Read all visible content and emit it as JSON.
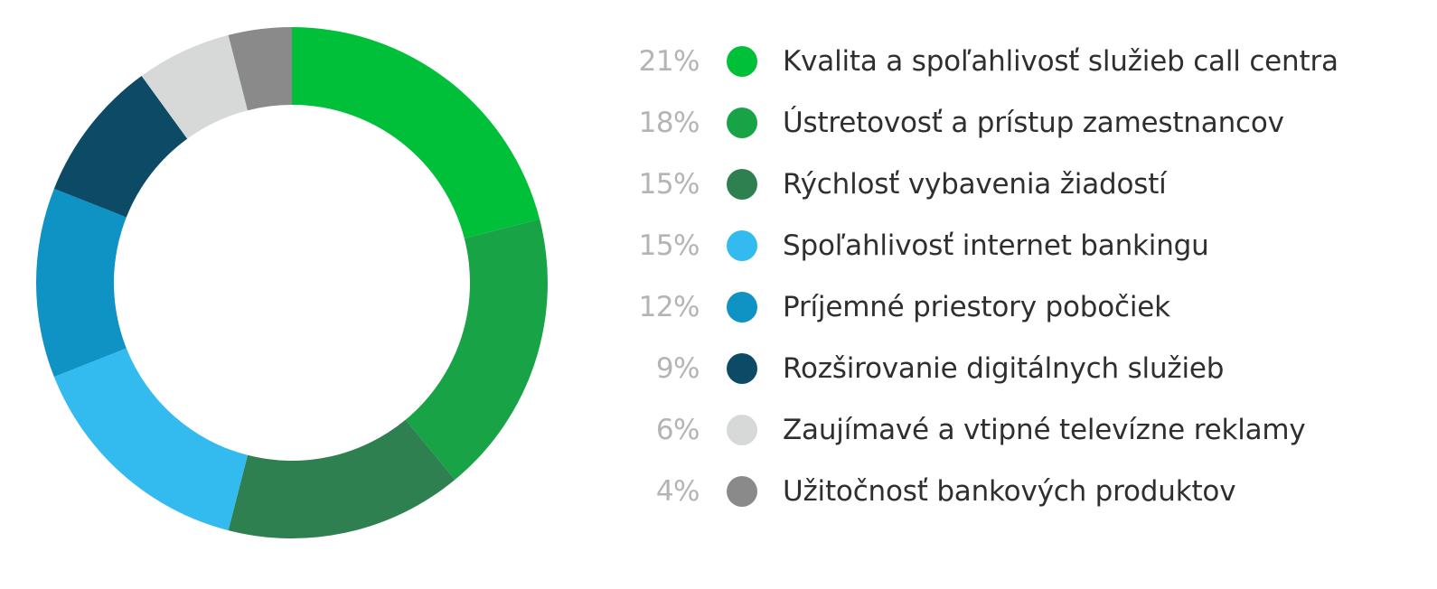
{
  "chart_data": {
    "type": "pie",
    "donut": true,
    "legend_position": "right",
    "slices": [
      {
        "label": "Kvalita a spoľahlivosť služieb call centra",
        "value": 21,
        "value_label": "21%",
        "color": "#00c03a"
      },
      {
        "label": "Ústretovosť a prístup zamestnancov",
        "value": 18,
        "value_label": "18%",
        "color": "#19a347"
      },
      {
        "label": "Rýchlosť vybavenia žiadostí",
        "value": 15,
        "value_label": "15%",
        "color": "#2e8050"
      },
      {
        "label": "Spoľahlivosť internet bankingu",
        "value": 15,
        "value_label": "15%",
        "color": "#33bbf0"
      },
      {
        "label": "Príjemné priestory pobočiek",
        "value": 12,
        "value_label": "12%",
        "color": "#0f92c4"
      },
      {
        "label": "Rozširovanie digitálnych služieb",
        "value": 9,
        "value_label": "9%",
        "color": "#0c4a66"
      },
      {
        "label": "Zaujímavé a vtipné televízne reklamy",
        "value": 6,
        "value_label": "6%",
        "color": "#d7d8d8"
      },
      {
        "label": "Užitočnosť bankových produktov",
        "value": 4,
        "value_label": "4%",
        "color": "#8a8a8a"
      }
    ]
  }
}
